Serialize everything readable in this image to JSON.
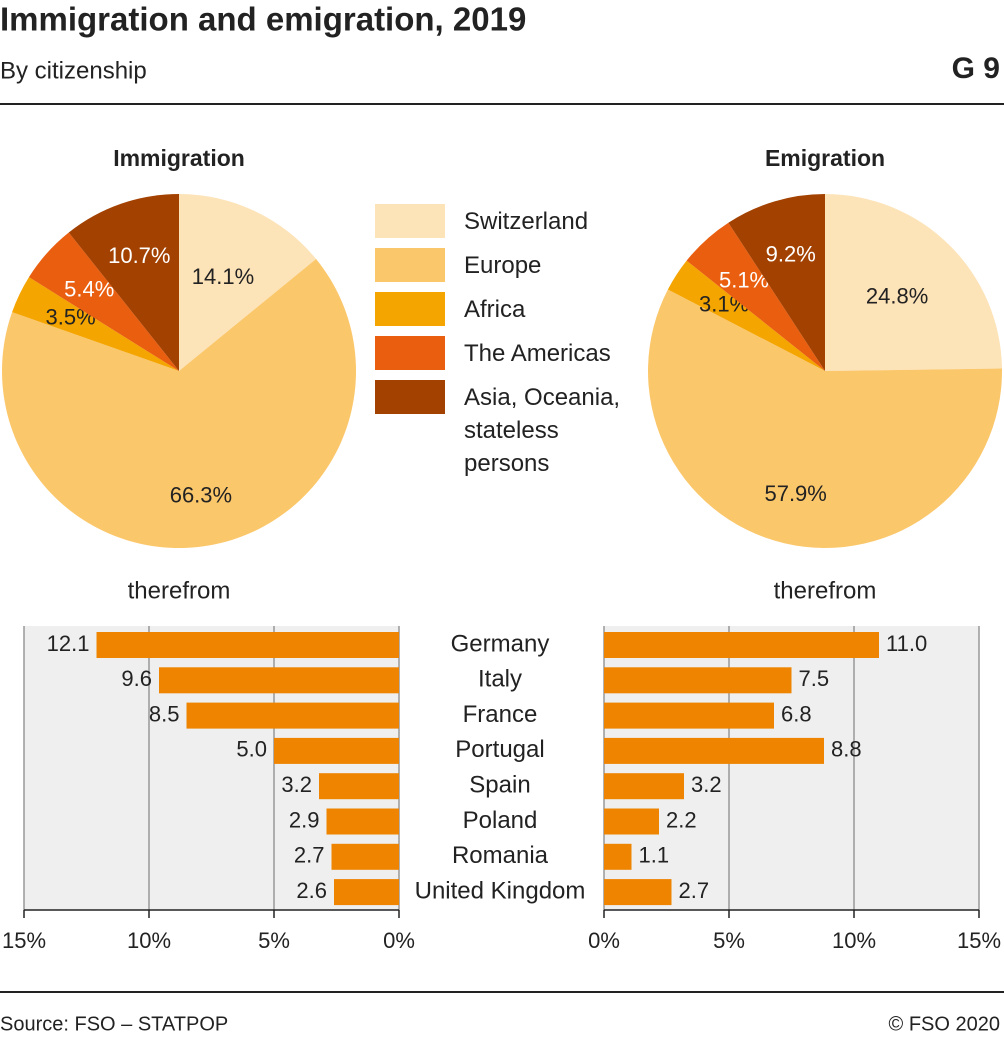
{
  "title": "Immigration and emigration, 2019",
  "subtitle": "By citizenship",
  "code": "G 9",
  "source": "Source: FSO – STATPOP",
  "copyright": "© FSO 2020",
  "chart_data": [
    {
      "type": "pie",
      "title": "Immigration",
      "categories": [
        "Switzerland",
        "Europe",
        "Africa",
        "The Americas",
        "Asia, Oceania, stateless persons"
      ],
      "colors": [
        "#fde3b8",
        "#fbc76b",
        "#f4a500",
        "#e95e0f",
        "#a34100"
      ],
      "values": [
        14.1,
        66.3,
        3.5,
        5.4,
        10.7
      ],
      "value_labels": [
        "14.1%",
        "66.3%",
        "3.5%",
        "5.4%",
        "10.7%"
      ]
    },
    {
      "type": "pie",
      "title": "Emigration",
      "values": [
        24.8,
        57.9,
        3.1,
        5.1,
        9.2
      ],
      "value_labels": [
        "24.8%",
        "57.9%",
        "3.1%",
        "5.1%",
        "9.2%"
      ]
    },
    {
      "type": "bar",
      "orientation": "horizontal",
      "direction": "left",
      "subtitle": "therefrom",
      "color": "#ee8400",
      "categories": [
        "Germany",
        "Italy",
        "France",
        "Portugal",
        "Spain",
        "Poland",
        "Romania",
        "United Kingdom"
      ],
      "values": [
        12.1,
        9.6,
        8.5,
        5.0,
        3.2,
        2.9,
        2.7,
        2.6
      ],
      "value_labels": [
        "12.1",
        "9.6",
        "8.5",
        "5.0",
        "3.2",
        "2.9",
        "2.7",
        "2.6"
      ],
      "xlim": [
        0,
        15
      ],
      "xticks": [
        {
          "value": 15,
          "label": "15%"
        },
        {
          "value": 10,
          "label": "10%"
        },
        {
          "value": 5,
          "label": "5%"
        },
        {
          "value": 0,
          "label": "0%"
        }
      ],
      "grid": true
    },
    {
      "type": "bar",
      "orientation": "horizontal",
      "direction": "right",
      "subtitle": "therefrom",
      "color": "#ee8400",
      "values": [
        11.0,
        7.5,
        6.8,
        8.8,
        3.2,
        2.2,
        1.1,
        2.7
      ],
      "value_labels": [
        "11.0",
        "7.5",
        "6.8",
        "8.8",
        "3.2",
        "2.2",
        "1.1",
        "2.7"
      ],
      "xlim": [
        0,
        15
      ],
      "xticks": [
        {
          "value": 0,
          "label": "0%"
        },
        {
          "value": 5,
          "label": "5%"
        },
        {
          "value": 10,
          "label": "10%"
        },
        {
          "value": 15,
          "label": "15%"
        }
      ],
      "grid": true
    }
  ]
}
